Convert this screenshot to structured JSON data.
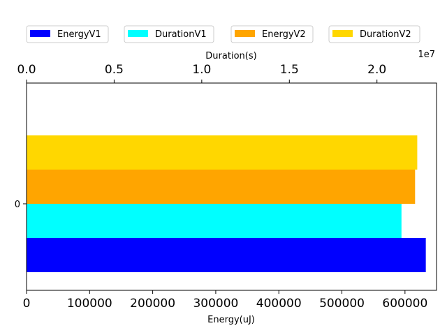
{
  "chart_data": {
    "type": "bar",
    "orientation": "horizontal",
    "categories": [
      "0"
    ],
    "xlabel_bottom": "Energy(uJ)",
    "xlabel_top": "Duration(s)",
    "top_axis_multiplier": "1e7",
    "xlim_bottom": [
      0,
      650000
    ],
    "xlim_top": [
      0,
      2.34
    ],
    "xticks_bottom": [
      "0",
      "100000",
      "200000",
      "300000",
      "400000",
      "500000",
      "600000"
    ],
    "xticks_top": [
      "0.0",
      "0.5",
      "1.0",
      "1.5",
      "2.0"
    ],
    "legend_placement": "top, above plot",
    "series": [
      {
        "name": "EnergyV1",
        "axis": "bottom",
        "values": [
          633000
        ],
        "color": "#0000ff"
      },
      {
        "name": "DurationV1",
        "axis": "top",
        "values": [
          2.14
        ],
        "color": "#00ffff"
      },
      {
        "name": "EnergyV2",
        "axis": "bottom",
        "values": [
          616000
        ],
        "color": "#ffa500"
      },
      {
        "name": "DurationV2",
        "axis": "top",
        "values": [
          2.23
        ],
        "color": "#ffd700"
      }
    ]
  }
}
